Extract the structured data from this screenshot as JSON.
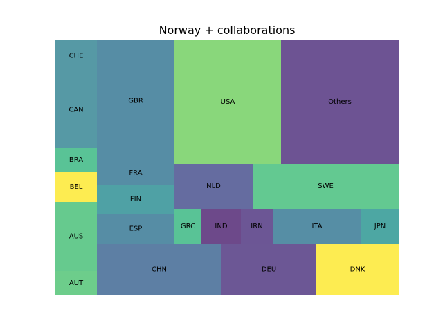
{
  "chart_data": {
    "type": "treemap",
    "title": "Norway + collaborations",
    "alpha": 0.8,
    "tiles": [
      {
        "label": "CHE",
        "color": "#2c7f8e"
      },
      {
        "label": "CAN",
        "color": "#2c7f8e"
      },
      {
        "label": "BRA",
        "color": "#2fb47c"
      },
      {
        "label": "BEL",
        "color": "#fde725"
      },
      {
        "label": "AUS",
        "color": "#40bd72"
      },
      {
        "label": "AUT",
        "color": "#48c16e"
      },
      {
        "label": "GBR",
        "color": "#2c718e"
      },
      {
        "label": "FRA",
        "color": "#2c718e"
      },
      {
        "label": "FIN",
        "color": "#23898e"
      },
      {
        "label": "ESP",
        "color": "#2c718e"
      },
      {
        "label": "CHN",
        "color": "#355f8d"
      },
      {
        "label": "USA",
        "color": "#6ccd5a"
      },
      {
        "label": "NLD",
        "color": "#3f4788"
      },
      {
        "label": "GRC",
        "color": "#2fb47c"
      },
      {
        "label": "IND",
        "color": "#481b6d"
      },
      {
        "label": "IRN",
        "color": "#472c7a"
      },
      {
        "label": "DEU",
        "color": "#472d7b"
      },
      {
        "label": "Others",
        "color": "#482878"
      },
      {
        "label": "SWE",
        "color": "#3cbb75"
      },
      {
        "label": "ITA",
        "color": "#2c728e"
      },
      {
        "label": "JPN",
        "color": "#21918c"
      },
      {
        "label": "DNK",
        "color": "#fde725"
      }
    ]
  }
}
